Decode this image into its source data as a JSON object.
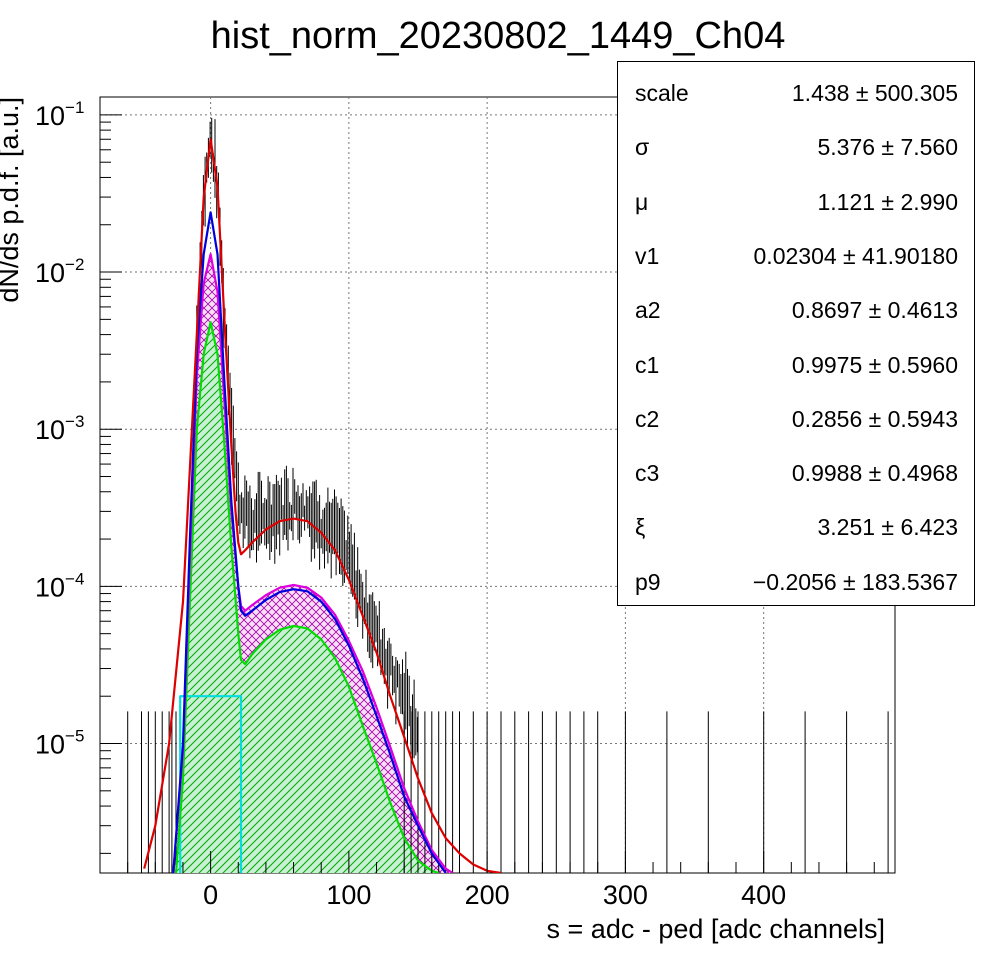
{
  "chart_data": {
    "type": "line",
    "title": "hist_norm_20230802_1449_Ch04",
    "xlabel": "s = adc - ped [adc channels]",
    "ylabel": "dN/ds p.d.f. [a.u.]",
    "xlim": [
      -80,
      495
    ],
    "ylim": [
      1.5e-06,
      0.13
    ],
    "yscale": "log",
    "grid": true,
    "x_ticks": [
      {
        "value": 0,
        "label": "0"
      },
      {
        "value": 100,
        "label": "100"
      },
      {
        "value": 200,
        "label": "200"
      },
      {
        "value": 300,
        "label": "300"
      },
      {
        "value": 400,
        "label": "400"
      }
    ],
    "y_ticks": [
      {
        "value": 1e-05,
        "base": "10",
        "exp": "−5"
      },
      {
        "value": 0.0001,
        "base": "10",
        "exp": "−4"
      },
      {
        "value": 0.001,
        "base": "10",
        "exp": "−3"
      },
      {
        "value": 0.01,
        "base": "10",
        "exp": "−2"
      },
      {
        "value": 0.1,
        "base": "10",
        "exp": "−1"
      }
    ],
    "series": [
      {
        "color": "#dd0000",
        "x": [
          -48,
          -40,
          -30,
          -20,
          -10,
          -5,
          0,
          5,
          10,
          15,
          18,
          20,
          22,
          25,
          30,
          40,
          50,
          60,
          70,
          80,
          90,
          100,
          110,
          120,
          130,
          140,
          150,
          160,
          170,
          180,
          190,
          200,
          210
        ],
        "y": [
          1.6e-06,
          3e-06,
          1e-05,
          8e-05,
          0.004,
          0.03,
          0.07,
          0.035,
          0.005,
          0.0008,
          0.0003,
          0.00019,
          0.00016,
          0.00017,
          0.00019,
          0.00023,
          0.00026,
          0.00027,
          0.00026,
          0.00022,
          0.00017,
          0.00011,
          6.5e-05,
          3.8e-05,
          2e-05,
          1.1e-05,
          6e-06,
          3.6e-06,
          2.5e-06,
          2e-06,
          1.7e-06,
          1.55e-06,
          1.5e-06
        ]
      },
      {
        "color": "#0000dd",
        "x": [
          -27,
          -20,
          -15,
          -10,
          -5,
          0,
          5,
          10,
          15,
          20,
          22,
          25,
          30,
          40,
          50,
          60,
          70,
          80,
          90,
          100,
          110,
          120,
          130,
          140,
          150,
          160,
          170
        ],
        "y": [
          1.5e-06,
          1e-05,
          0.0002,
          0.003,
          0.013,
          0.024,
          0.013,
          0.002,
          0.00035,
          0.0001,
          7e-05,
          6.5e-05,
          7e-05,
          8.2e-05,
          9.2e-05,
          9.6e-05,
          9.3e-05,
          8e-05,
          6.2e-05,
          4.2e-05,
          2.6e-05,
          1.5e-05,
          8.5e-06,
          4.6e-06,
          3e-06,
          2e-06,
          1.5e-06
        ]
      },
      {
        "color": "#dd00dd",
        "x": [
          -27,
          -20,
          -15,
          -10,
          -5,
          0,
          5,
          10,
          15,
          20,
          22,
          25,
          30,
          40,
          50,
          60,
          70,
          80,
          90,
          100,
          110,
          120,
          130,
          140,
          150,
          160,
          170,
          175
        ],
        "y": [
          1.5e-06,
          9e-06,
          0.00015,
          0.0022,
          0.0085,
          0.013,
          0.0075,
          0.0015,
          0.0003,
          0.0001,
          7.5e-05,
          7e-05,
          7.6e-05,
          8.8e-05,
          9.8e-05,
          0.000102,
          9.8e-05,
          8.5e-05,
          6.6e-05,
          4.5e-05,
          2.9e-05,
          1.7e-05,
          9.5e-06,
          5.2e-06,
          3.2e-06,
          2.1e-06,
          1.6e-06,
          1.5e-06
        ]
      },
      {
        "color": "#00dd00",
        "x": [
          -25,
          -20,
          -15,
          -10,
          -5,
          0,
          5,
          10,
          15,
          20,
          22,
          25,
          30,
          40,
          50,
          60,
          70,
          80,
          90,
          100,
          110,
          120,
          130,
          140,
          150,
          160,
          165
        ],
        "y": [
          1.5e-06,
          6e-06,
          8e-05,
          0.001,
          0.003,
          0.0048,
          0.003,
          0.0008,
          0.00018,
          5e-05,
          3.4e-05,
          3.2e-05,
          3.7e-05,
          4.6e-05,
          5.3e-05,
          5.6e-05,
          5.4e-05,
          4.6e-05,
          3.5e-05,
          2.3e-05,
          1.3e-05,
          7.5e-06,
          4.2e-06,
          2.5e-06,
          1.8e-06,
          1.55e-06,
          1.5e-06
        ]
      },
      {
        "color": "#00dddd",
        "x": [
          -22,
          -22,
          22,
          22
        ],
        "y": [
          1.5e-06,
          2e-05,
          2e-05,
          1.5e-06
        ]
      },
      {
        "color": "#000000",
        "x": [
          -20,
          -10,
          -5,
          0,
          5,
          10,
          20,
          30,
          40,
          50,
          60,
          70,
          80,
          90,
          100,
          110,
          120,
          130,
          140,
          150
        ],
        "y": [
          2e-05,
          0.004,
          0.03,
          0.07,
          0.035,
          0.005,
          0.00035,
          0.00025,
          0.00028,
          0.00031,
          0.00033,
          0.00031,
          0.00026,
          0.00022,
          0.00015,
          8e-05,
          5e-05,
          3e-05,
          2e-05,
          1.2e-05
        ]
      }
    ]
  },
  "stats": [
    {
      "name": "scale",
      "value": "1.438 ± 500.305"
    },
    {
      "name": "σ",
      "value": "5.376 ± 7.560"
    },
    {
      "name": "μ",
      "value": "1.121 ± 2.990"
    },
    {
      "name": "v1",
      "value": "0.02304 ± 41.90180"
    },
    {
      "name": "a2",
      "value": "0.8697 ± 0.4613"
    },
    {
      "name": "c1",
      "value": "0.9975 ± 0.5960"
    },
    {
      "name": "c2",
      "value": "0.2856 ± 0.5943"
    },
    {
      "name": "c3",
      "value": "0.9988 ± 0.4968"
    },
    {
      "name": "ξ",
      "value": "3.251 ± 6.423"
    },
    {
      "name": "p9",
      "value": "−0.2056 ± 183.5367"
    }
  ]
}
